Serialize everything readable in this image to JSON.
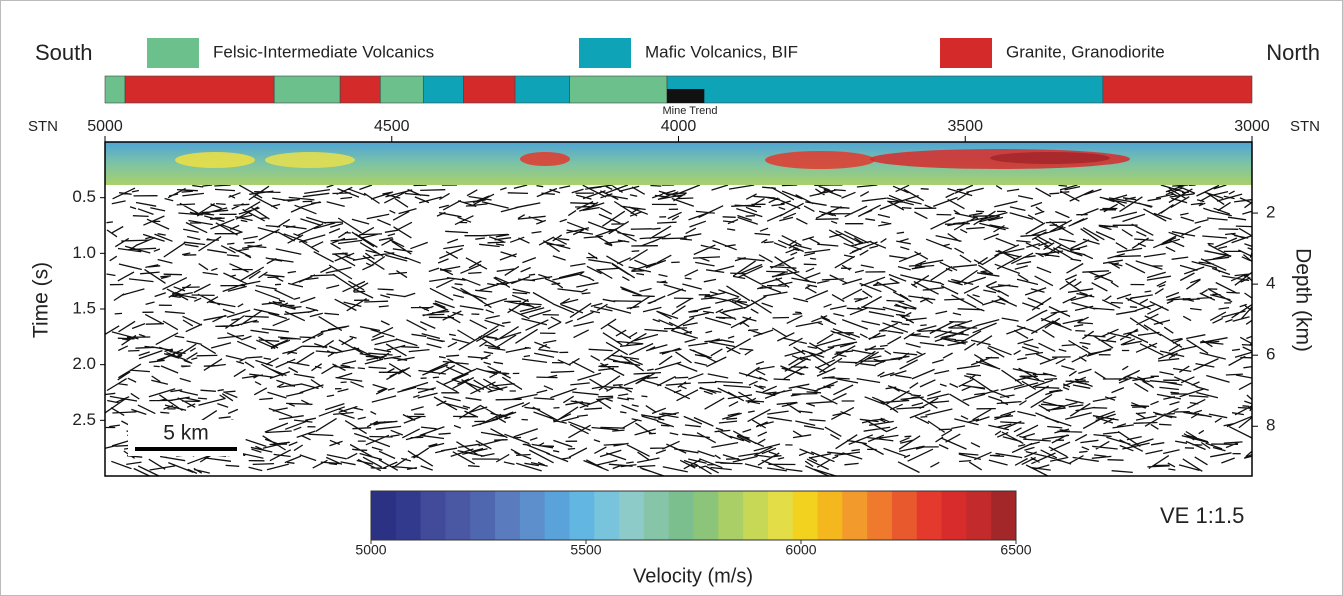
{
  "labels": {
    "south": "South",
    "north": "North",
    "stn_left": "STN",
    "stn_right": "STN",
    "mine_trend": "Mine Trend",
    "time_axis": "Time (s)",
    "depth_axis": "Depth (km)",
    "scale_bar": "5 km",
    "ve": "VE 1:1.5",
    "colorbar_title": "Velocity (m/s)"
  },
  "legend": [
    {
      "name": "Felsic-Intermediate Volcanics",
      "color": "#6cc08c"
    },
    {
      "name": "Mafic Volcanics, BIF",
      "color": "#0fa3b8"
    },
    {
      "name": "Granite, Granodiorite",
      "color": "#d42a2a"
    }
  ],
  "station_lim": [
    5000,
    3000
  ],
  "station_ticks": [
    5000,
    4500,
    4000,
    3500,
    3000
  ],
  "geology_bar": [
    {
      "unit": 0,
      "from": 5000,
      "to": 4965
    },
    {
      "unit": 2,
      "from": 4965,
      "to": 4705
    },
    {
      "unit": 0,
      "from": 4705,
      "to": 4590
    },
    {
      "unit": 2,
      "from": 4590,
      "to": 4520
    },
    {
      "unit": 0,
      "from": 4520,
      "to": 4445
    },
    {
      "unit": 1,
      "from": 4445,
      "to": 4375
    },
    {
      "unit": 2,
      "from": 4375,
      "to": 4285
    },
    {
      "unit": 1,
      "from": 4285,
      "to": 4190
    },
    {
      "unit": 0,
      "from": 4190,
      "to": 4020
    },
    {
      "unit": 1,
      "from": 4020,
      "to": 3260
    },
    {
      "unit": 2,
      "from": 3260,
      "to": 3000
    }
  ],
  "mine_trend": {
    "from": 4020,
    "to": 3955,
    "color": "#111111"
  },
  "time_lim": [
    0,
    3
  ],
  "time_ticks": [
    0.5,
    {
      "value": 1,
      "label": "1.0"
    },
    1.5,
    {
      "value": 2,
      "label": "2.0"
    },
    2.5
  ],
  "depth_lim": [
    0,
    9.4
  ],
  "depth_ticks": [
    2,
    4,
    6,
    8
  ],
  "velocity_lim": [
    5000,
    6500
  ],
  "velocity_ticks": [
    5000,
    5500,
    6000,
    6500
  ],
  "velocity_colors": [
    "#2b3183",
    "#323a8e",
    "#414b9a",
    "#4a58a4",
    "#4f67ae",
    "#5a7bbd",
    "#5c8fcc",
    "#5aa3da",
    "#62b6e2",
    "#77c4dc",
    "#8ccbc8",
    "#86c5a8",
    "#7cbf8e",
    "#8cc57a",
    "#a9cf66",
    "#c6d855",
    "#e3dd47",
    "#f3d21f",
    "#f4b71d",
    "#f29a2c",
    "#ef7a2e",
    "#e85a2e",
    "#e33a2d",
    "#d82b2c",
    "#c22a2c",
    "#a32629"
  ]
}
